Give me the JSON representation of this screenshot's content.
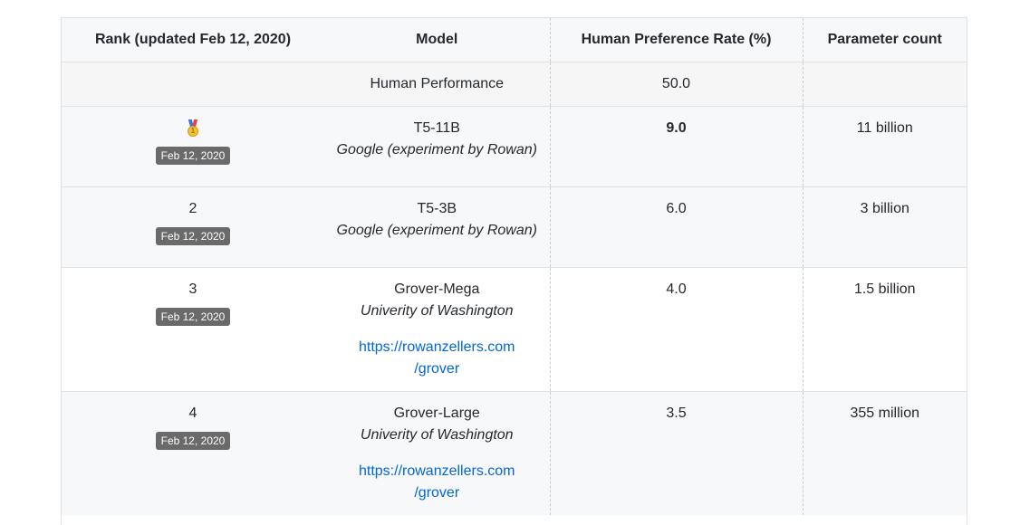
{
  "table": {
    "headers": {
      "rank": "Rank (updated Feb 12, 2020)",
      "model": "Model",
      "rate": "Human Preference Rate (%)",
      "params": "Parameter count"
    },
    "human": {
      "model": "Human Performance",
      "rate": "50.0",
      "params": ""
    },
    "rows": [
      {
        "rank": "",
        "rank_icon": "gold-medal-icon",
        "date": "Feb 12, 2020",
        "model": "T5-11B",
        "org": "Google (experiment by Rowan)",
        "link_line1": "",
        "link_line2": "",
        "rate": "9.0",
        "params": "11 billion"
      },
      {
        "rank": "2",
        "date": "Feb 12, 2020",
        "model": "T5-3B",
        "org": "Google (experiment by Rowan)",
        "link_line1": "",
        "link_line2": "",
        "rate": "6.0",
        "params": "3 billion"
      },
      {
        "rank": "3",
        "date": "Feb 12, 2020",
        "model": "Grover-Mega",
        "org": "Univerity of Washington",
        "link_line1": "https://rowanzellers.com",
        "link_line2": "/grover",
        "rate": "4.0",
        "params": "1.5 billion"
      },
      {
        "rank": "4",
        "date": "Feb 12, 2020",
        "model": "Grover-Large",
        "org": "Univerity of Washington",
        "link_line1": "https://rowanzellers.com",
        "link_line2": "/grover",
        "rate": "3.5",
        "params": "355 million"
      }
    ]
  },
  "colors": {
    "link": "#0366d6",
    "badge": "#6a6a6a",
    "header_bg": "#f6f8fa",
    "border": "#dfe2e5"
  }
}
